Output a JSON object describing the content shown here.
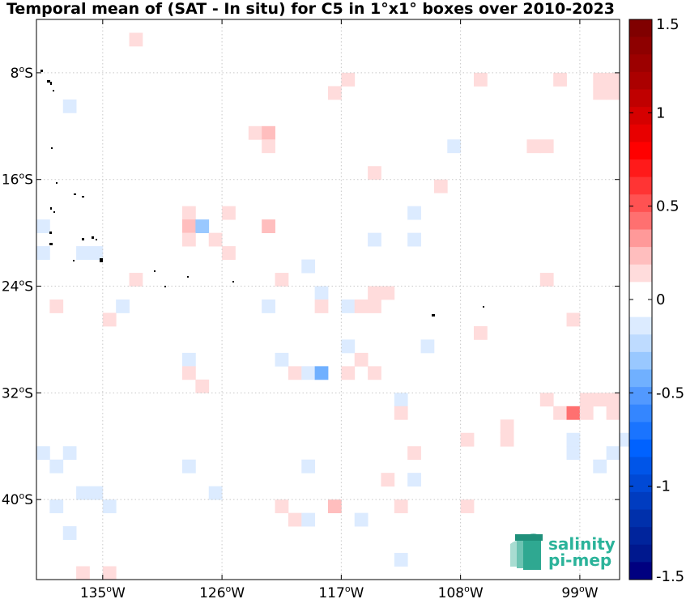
{
  "chart_data": {
    "type": "heatmap",
    "title": "Temporal mean of (SAT - In situ) for C5 in 1°x1° boxes over 2010-2023",
    "x_ticks": [
      {
        "value": -135,
        "label": "135",
        "deg": "o",
        "hemi": "W"
      },
      {
        "value": -126,
        "label": "126",
        "deg": "o",
        "hemi": "W"
      },
      {
        "value": -117,
        "label": "117",
        "deg": "o",
        "hemi": "W"
      },
      {
        "value": -108,
        "label": "108",
        "deg": "o",
        "hemi": "W"
      },
      {
        "value": -99,
        "label": "99",
        "deg": "o",
        "hemi": "W"
      }
    ],
    "y_ticks": [
      {
        "value": -8,
        "label": "8",
        "deg": "o",
        "hemi": "S"
      },
      {
        "value": -16,
        "label": "16",
        "deg": "o",
        "hemi": "S"
      },
      {
        "value": -24,
        "label": "24",
        "deg": "o",
        "hemi": "S"
      },
      {
        "value": -32,
        "label": "32",
        "deg": "o",
        "hemi": "S"
      },
      {
        "value": -40,
        "label": "40",
        "deg": "o",
        "hemi": "S"
      }
    ],
    "xlim": [
      -140,
      -96
    ],
    "ylim": [
      -46,
      -4
    ],
    "grid": true,
    "colorbar": {
      "range": [
        -1.5,
        1.5
      ],
      "tick_labels": [
        {
          "value": 1.5,
          "label": "1.5"
        },
        {
          "value": 1,
          "label": "1"
        },
        {
          "value": 0.5,
          "label": "0.5"
        },
        {
          "value": 0,
          "label": "0"
        },
        {
          "value": -0.5,
          "label": "-0.5"
        },
        {
          "value": -1,
          "label": "-1"
        },
        {
          "value": -1.5,
          "label": "-1.5"
        }
      ],
      "colors_top_to_bottom": [
        "#800000",
        "#8e0000",
        "#9c0000",
        "#ab0000",
        "#c00000",
        "#d50000",
        "#e80000",
        "#ff0000",
        "#ff1a1a",
        "#ff3434",
        "#ff5252",
        "#ff7070",
        "#ff9999",
        "#ffbebe",
        "#ffdcdc",
        "#ffffff",
        "#ffffff",
        "#dcebff",
        "#bedbff",
        "#99c8ff",
        "#70b0ff",
        "#5299ff",
        "#3486ff",
        "#1a74ff",
        "#0062ff",
        "#0055e8",
        "#0049d5",
        "#003cc0",
        "#0030ab",
        "#00249c",
        "#00188e",
        "#000080"
      ]
    },
    "boxes": [
      {
        "lon": -132.5,
        "lat": -5.5,
        "value": 0.15
      },
      {
        "lon": -116.5,
        "lat": -8.5,
        "value": 0.15
      },
      {
        "lon": -117.5,
        "lat": -9.5,
        "value": 0.15
      },
      {
        "lon": -106.5,
        "lat": -8.5,
        "value": 0.15
      },
      {
        "lon": -100.5,
        "lat": -8.5,
        "value": 0.15
      },
      {
        "lon": -96.5,
        "lat": -8.5,
        "value": 0.15
      },
      {
        "lon": -97.5,
        "lat": -8.5,
        "value": 0.15
      },
      {
        "lon": -96.5,
        "lat": -9.5,
        "value": 0.15
      },
      {
        "lon": -97.5,
        "lat": -9.5,
        "value": 0.15
      },
      {
        "lon": -137.5,
        "lat": -10.5,
        "value": -0.15
      },
      {
        "lon": -123.5,
        "lat": -12.5,
        "value": 0.15
      },
      {
        "lon": -122.5,
        "lat": -12.5,
        "value": 0.25
      },
      {
        "lon": -122.5,
        "lat": -13.5,
        "value": 0.15
      },
      {
        "lon": -108.5,
        "lat": -13.5,
        "value": -0.15
      },
      {
        "lon": -101.5,
        "lat": -13.5,
        "value": 0.15
      },
      {
        "lon": -102.5,
        "lat": -13.5,
        "value": 0.15
      },
      {
        "lon": -114.5,
        "lat": -15.5,
        "value": 0.15
      },
      {
        "lon": -109.5,
        "lat": -16.5,
        "value": 0.15
      },
      {
        "lon": -128.5,
        "lat": -18.5,
        "value": 0.15
      },
      {
        "lon": -128.5,
        "lat": -19.5,
        "value": 0.25
      },
      {
        "lon": -127.5,
        "lat": -19.5,
        "value": -0.35
      },
      {
        "lon": -125.5,
        "lat": -18.5,
        "value": 0.15
      },
      {
        "lon": -122.5,
        "lat": -19.5,
        "value": 0.25
      },
      {
        "lon": -111.5,
        "lat": -18.5,
        "value": -0.15
      },
      {
        "lon": -139.5,
        "lat": -19.5,
        "value": -0.15
      },
      {
        "lon": -128.5,
        "lat": -20.5,
        "value": 0.15
      },
      {
        "lon": -126.5,
        "lat": -20.5,
        "value": 0.15
      },
      {
        "lon": -114.5,
        "lat": -20.5,
        "value": -0.15
      },
      {
        "lon": -111.5,
        "lat": -20.5,
        "value": -0.15
      },
      {
        "lon": -139.5,
        "lat": -21.5,
        "value": -0.15
      },
      {
        "lon": -136.5,
        "lat": -21.5,
        "value": -0.15
      },
      {
        "lon": -135.5,
        "lat": -21.5,
        "value": -0.15
      },
      {
        "lon": -125.5,
        "lat": -21.5,
        "value": 0.15
      },
      {
        "lon": -119.5,
        "lat": -22.5,
        "value": -0.15
      },
      {
        "lon": -132.5,
        "lat": -23.5,
        "value": 0.15
      },
      {
        "lon": -121.5,
        "lat": -23.5,
        "value": 0.15
      },
      {
        "lon": -101.5,
        "lat": -23.5,
        "value": 0.15
      },
      {
        "lon": -118.5,
        "lat": -24.5,
        "value": -0.15
      },
      {
        "lon": -114.5,
        "lat": -24.5,
        "value": 0.15
      },
      {
        "lon": -113.5,
        "lat": -24.5,
        "value": 0.15
      },
      {
        "lon": -138.5,
        "lat": -25.5,
        "value": 0.15
      },
      {
        "lon": -133.5,
        "lat": -25.5,
        "value": -0.15
      },
      {
        "lon": -122.5,
        "lat": -25.5,
        "value": -0.15
      },
      {
        "lon": -118.5,
        "lat": -25.5,
        "value": 0.15
      },
      {
        "lon": -116.5,
        "lat": -25.5,
        "value": -0.15
      },
      {
        "lon": -114.5,
        "lat": -25.5,
        "value": 0.15
      },
      {
        "lon": -115.5,
        "lat": -25.5,
        "value": 0.15
      },
      {
        "lon": -134.5,
        "lat": -26.5,
        "value": 0.15
      },
      {
        "lon": -99.5,
        "lat": -26.5,
        "value": 0.15
      },
      {
        "lon": -106.5,
        "lat": -27.5,
        "value": 0.15
      },
      {
        "lon": -116.5,
        "lat": -28.5,
        "value": -0.15
      },
      {
        "lon": -110.5,
        "lat": -28.5,
        "value": -0.15
      },
      {
        "lon": -128.5,
        "lat": -29.5,
        "value": -0.15
      },
      {
        "lon": -121.5,
        "lat": -29.5,
        "value": -0.15
      },
      {
        "lon": -115.5,
        "lat": -29.5,
        "value": 0.15
      },
      {
        "lon": -128.5,
        "lat": -30.5,
        "value": 0.15
      },
      {
        "lon": -120.5,
        "lat": -30.5,
        "value": 0.15
      },
      {
        "lon": -119.5,
        "lat": -30.5,
        "value": -0.15
      },
      {
        "lon": -118.5,
        "lat": -30.5,
        "value": -0.4
      },
      {
        "lon": -116.5,
        "lat": -30.5,
        "value": 0.15
      },
      {
        "lon": -114.5,
        "lat": -30.5,
        "value": 0.15
      },
      {
        "lon": -127.5,
        "lat": -31.5,
        "value": 0.15
      },
      {
        "lon": -112.5,
        "lat": -32.5,
        "value": -0.15
      },
      {
        "lon": -101.5,
        "lat": -32.5,
        "value": 0.15
      },
      {
        "lon": -98.5,
        "lat": -32.5,
        "value": 0.15
      },
      {
        "lon": -97.5,
        "lat": -32.5,
        "value": 0.15
      },
      {
        "lon": -96.5,
        "lat": -32.5,
        "value": 0.15
      },
      {
        "lon": -112.5,
        "lat": -33.5,
        "value": 0.15
      },
      {
        "lon": -100.5,
        "lat": -33.5,
        "value": 0.15
      },
      {
        "lon": -99.5,
        "lat": -33.5,
        "value": 0.45
      },
      {
        "lon": -98.5,
        "lat": -33.5,
        "value": 0.15
      },
      {
        "lon": -96.5,
        "lat": -33.5,
        "value": 0.15
      },
      {
        "lon": -104.5,
        "lat": -34.5,
        "value": 0.15
      },
      {
        "lon": -104.5,
        "lat": -35.5,
        "value": 0.15
      },
      {
        "lon": -107.5,
        "lat": -35.5,
        "value": 0.15
      },
      {
        "lon": -99.5,
        "lat": -35.5,
        "value": -0.15
      },
      {
        "lon": -95.5,
        "lat": -35.5,
        "value": -0.15
      },
      {
        "lon": -139.5,
        "lat": -36.5,
        "value": -0.15
      },
      {
        "lon": -137.5,
        "lat": -36.5,
        "value": -0.15
      },
      {
        "lon": -111.5,
        "lat": -36.5,
        "value": 0.15
      },
      {
        "lon": -99.5,
        "lat": -36.5,
        "value": -0.15
      },
      {
        "lon": -96.5,
        "lat": -36.5,
        "value": -0.15
      },
      {
        "lon": -138.5,
        "lat": -37.5,
        "value": -0.15
      },
      {
        "lon": -128.5,
        "lat": -37.5,
        "value": -0.15
      },
      {
        "lon": -119.5,
        "lat": -37.5,
        "value": -0.15
      },
      {
        "lon": -97.5,
        "lat": -37.5,
        "value": -0.15
      },
      {
        "lon": -113.5,
        "lat": -38.5,
        "value": 0.15
      },
      {
        "lon": -111.5,
        "lat": -38.5,
        "value": -0.15
      },
      {
        "lon": -136.5,
        "lat": -39.5,
        "value": -0.15
      },
      {
        "lon": -135.5,
        "lat": -39.5,
        "value": -0.15
      },
      {
        "lon": -126.5,
        "lat": -39.5,
        "value": -0.15
      },
      {
        "lon": -138.5,
        "lat": -40.5,
        "value": -0.15
      },
      {
        "lon": -134.5,
        "lat": -40.5,
        "value": -0.15
      },
      {
        "lon": -121.5,
        "lat": -40.5,
        "value": 0.15
      },
      {
        "lon": -117.5,
        "lat": -40.5,
        "value": 0.25
      },
      {
        "lon": -112.5,
        "lat": -40.5,
        "value": 0.15
      },
      {
        "lon": -107.5,
        "lat": -40.5,
        "value": 0.15
      },
      {
        "lon": -120.5,
        "lat": -41.5,
        "value": 0.15
      },
      {
        "lon": -119.5,
        "lat": -41.5,
        "value": -0.15
      },
      {
        "lon": -115.5,
        "lat": -41.5,
        "value": -0.15
      },
      {
        "lon": -137.5,
        "lat": -42.5,
        "value": -0.15
      },
      {
        "lon": -112.5,
        "lat": -44.5,
        "value": -0.15
      },
      {
        "lon": -136.5,
        "lat": -45.5,
        "value": 0.15
      },
      {
        "lon": -134.5,
        "lat": -45.5,
        "value": 0.15
      }
    ]
  },
  "logo": {
    "line1": "salinity",
    "line2": "pi-mep"
  }
}
